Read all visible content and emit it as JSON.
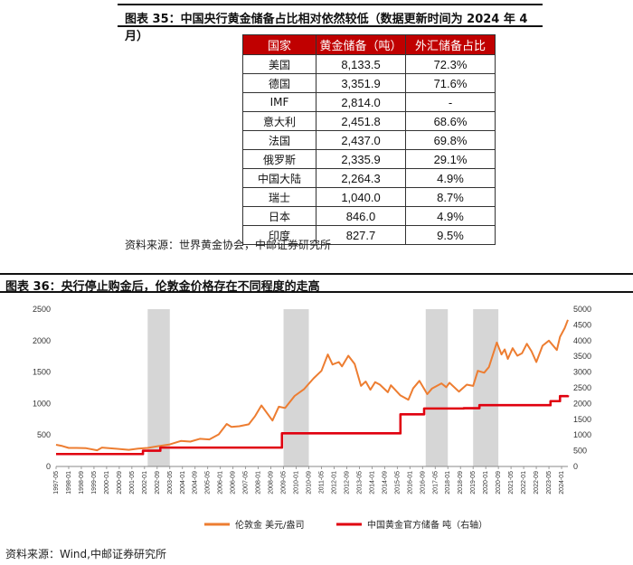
{
  "table_section": {
    "title": "图表 35：中国央行黄金储备占比相对依然较低（数据更新时间为 2024 年 4 月）",
    "headers": [
      "国家",
      "黄金储备（吨）",
      "外汇储备占比"
    ],
    "rows": [
      [
        "美国",
        "8,133.5",
        "72.3%"
      ],
      [
        "德国",
        "3,351.9",
        "71.6%"
      ],
      [
        "IMF",
        "2,814.0",
        "-"
      ],
      [
        "意大利",
        "2,451.8",
        "68.6%"
      ],
      [
        "法国",
        "2,437.0",
        "69.8%"
      ],
      [
        "俄罗斯",
        "2,335.9",
        "29.1%"
      ],
      [
        "中国大陆",
        "2,264.3",
        "4.9%"
      ],
      [
        "瑞士",
        "1,040.0",
        "8.7%"
      ],
      [
        "日本",
        "846.0",
        "4.9%"
      ],
      [
        "印度",
        "827.7",
        "9.5%"
      ]
    ],
    "header_color": "#c00000",
    "source": "资料来源：世界黄金协会，中邮证券研究所"
  },
  "chart_section": {
    "title": "图表 36：央行停止购金后，伦敦金价格存在不同程度的走高",
    "source": "资料来源：Wind,中邮证券研究所"
  },
  "chart_data": {
    "type": "line",
    "x_start": "1997-05",
    "x_end": "2024-05",
    "x_tick_labels": [
      "1997-05",
      "1998-01",
      "1998-09",
      "1999-05",
      "2000-01",
      "2000-09",
      "2001-05",
      "2002-01",
      "2002-09",
      "2003-05",
      "2004-01",
      "2004-09",
      "2005-05",
      "2006-01",
      "2006-09",
      "2007-05",
      "2008-01",
      "2008-09",
      "2009-05",
      "2010-01",
      "2010-09",
      "2011-05",
      "2012-01",
      "2012-09",
      "2013-05",
      "2014-01",
      "2014-09",
      "2015-05",
      "2016-01",
      "2016-09",
      "2017-05",
      "2018-01",
      "2018-09",
      "2019-05",
      "2020-01",
      "2020-09",
      "2021-05",
      "2022-01",
      "2022-09",
      "2023-05",
      "2024-01"
    ],
    "left_axis": {
      "ylim": [
        0,
        2500
      ],
      "ticks": [
        0,
        500,
        1000,
        1500,
        2000,
        2500
      ]
    },
    "right_axis": {
      "ylim": [
        0,
        5000
      ],
      "ticks": [
        0,
        500,
        1000,
        1500,
        2000,
        2500,
        3000,
        3500,
        4000,
        4500,
        5000
      ]
    },
    "shaded_periods": [
      [
        "2002-03",
        "2003-05"
      ],
      [
        "2009-05",
        "2010-09"
      ],
      [
        "2016-11",
        "2018-01"
      ],
      [
        "2019-05",
        "2020-09"
      ]
    ],
    "shade_color": "#d6d6d6",
    "series": [
      {
        "name": "伦敦金 美元/盎司",
        "axis": "left",
        "color": "#ed7d31",
        "points": [
          [
            "1997-05",
            345
          ],
          [
            "1997-09",
            325
          ],
          [
            "1998-01",
            295
          ],
          [
            "1998-06",
            295
          ],
          [
            "1998-12",
            290
          ],
          [
            "1999-07",
            257
          ],
          [
            "1999-10",
            300
          ],
          [
            "2000-06",
            285
          ],
          [
            "2001-03",
            265
          ],
          [
            "2001-09",
            285
          ],
          [
            "2002-03",
            295
          ],
          [
            "2002-09",
            320
          ],
          [
            "2003-05",
            350
          ],
          [
            "2003-12",
            405
          ],
          [
            "2004-06",
            395
          ],
          [
            "2004-12",
            440
          ],
          [
            "2005-06",
            430
          ],
          [
            "2005-12",
            510
          ],
          [
            "2006-05",
            675
          ],
          [
            "2006-08",
            630
          ],
          [
            "2007-01",
            640
          ],
          [
            "2007-07",
            670
          ],
          [
            "2007-11",
            800
          ],
          [
            "2008-03",
            970
          ],
          [
            "2008-10",
            730
          ],
          [
            "2009-02",
            950
          ],
          [
            "2009-06",
            930
          ],
          [
            "2009-12",
            1120
          ],
          [
            "2010-06",
            1230
          ],
          [
            "2010-12",
            1400
          ],
          [
            "2011-05",
            1520
          ],
          [
            "2011-09",
            1780
          ],
          [
            "2011-12",
            1620
          ],
          [
            "2012-04",
            1660
          ],
          [
            "2012-06",
            1590
          ],
          [
            "2012-10",
            1760
          ],
          [
            "2013-02",
            1630
          ],
          [
            "2013-06",
            1280
          ],
          [
            "2013-09",
            1350
          ],
          [
            "2013-12",
            1220
          ],
          [
            "2014-03",
            1340
          ],
          [
            "2014-06",
            1300
          ],
          [
            "2014-11",
            1180
          ],
          [
            "2015-01",
            1290
          ],
          [
            "2015-07",
            1130
          ],
          [
            "2015-12",
            1060
          ],
          [
            "2016-03",
            1240
          ],
          [
            "2016-07",
            1360
          ],
          [
            "2016-12",
            1150
          ],
          [
            "2017-03",
            1240
          ],
          [
            "2017-09",
            1320
          ],
          [
            "2017-12",
            1260
          ],
          [
            "2018-02",
            1330
          ],
          [
            "2018-08",
            1190
          ],
          [
            "2019-01",
            1300
          ],
          [
            "2019-05",
            1280
          ],
          [
            "2019-08",
            1520
          ],
          [
            "2019-12",
            1490
          ],
          [
            "2020-03",
            1580
          ],
          [
            "2020-08",
            1970
          ],
          [
            "2020-11",
            1780
          ],
          [
            "2021-01",
            1860
          ],
          [
            "2021-03",
            1710
          ],
          [
            "2021-06",
            1880
          ],
          [
            "2021-09",
            1760
          ],
          [
            "2021-12",
            1800
          ],
          [
            "2022-03",
            1950
          ],
          [
            "2022-06",
            1830
          ],
          [
            "2022-09",
            1660
          ],
          [
            "2023-01",
            1920
          ],
          [
            "2023-05",
            2000
          ],
          [
            "2023-10",
            1850
          ],
          [
            "2023-12",
            2060
          ],
          [
            "2024-03",
            2200
          ],
          [
            "2024-05",
            2330
          ]
        ]
      },
      {
        "name": "中国黄金官方储备 吨（右轴）",
        "axis": "right",
        "color": "#e0000f",
        "points": [
          [
            "1997-05",
            395
          ],
          [
            "2001-11",
            395
          ],
          [
            "2001-12",
            500
          ],
          [
            "2002-10",
            500
          ],
          [
            "2002-11",
            600
          ],
          [
            "2009-03",
            600
          ],
          [
            "2009-04",
            1054
          ],
          [
            "2015-06",
            1054
          ],
          [
            "2015-07",
            1658
          ],
          [
            "2016-10",
            1843
          ],
          [
            "2018-11",
            1852
          ],
          [
            "2019-09",
            1948
          ],
          [
            "2022-10",
            1948
          ],
          [
            "2023-06",
            2076
          ],
          [
            "2023-12",
            2235
          ],
          [
            "2024-05",
            2264
          ]
        ]
      }
    ]
  }
}
